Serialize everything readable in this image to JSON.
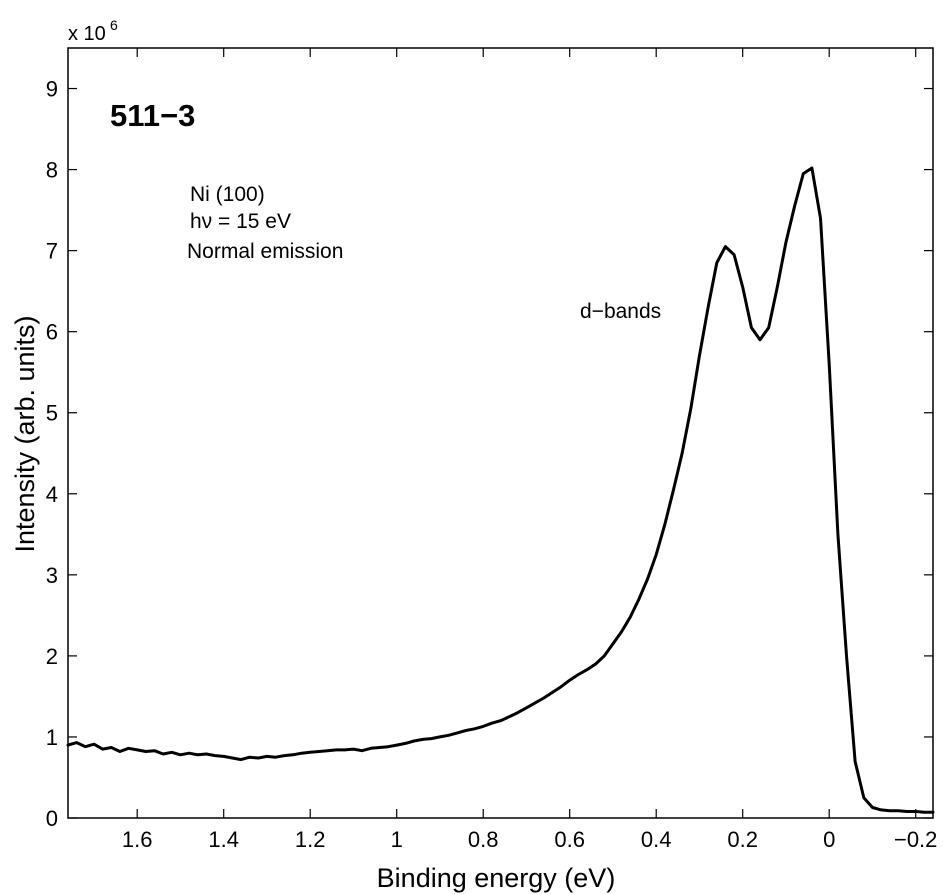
{
  "chart_data": {
    "type": "line",
    "title": "",
    "xlabel": "Binding energy (eV)",
    "ylabel": "Intensity (arb. units)",
    "xlim": [
      1.76,
      -0.24
    ],
    "ylim": [
      0,
      9.5
    ],
    "y_multiplier_label": "x 10",
    "y_multiplier_exponent": "6",
    "x_reversed": true,
    "grid": false,
    "x_ticks": [
      1.6,
      1.4,
      1.2,
      1,
      0.8,
      0.6,
      0.4,
      0.2,
      0,
      -0.2
    ],
    "x_tick_labels": [
      "1.6",
      "1.4",
      "1.2",
      "1",
      "0.8",
      "0.6",
      "0.4",
      "0.2",
      "0",
      "−0.2"
    ],
    "y_ticks": [
      0,
      1,
      2,
      3,
      4,
      5,
      6,
      7,
      8,
      9
    ],
    "y_tick_labels": [
      "0",
      "1",
      "2",
      "3",
      "4",
      "5",
      "6",
      "7",
      "8",
      "9"
    ],
    "series": [
      {
        "color": "#000000",
        "x": [
          1.76,
          1.74,
          1.72,
          1.7,
          1.68,
          1.66,
          1.64,
          1.62,
          1.6,
          1.58,
          1.56,
          1.54,
          1.52,
          1.5,
          1.48,
          1.46,
          1.44,
          1.42,
          1.4,
          1.38,
          1.36,
          1.34,
          1.32,
          1.3,
          1.28,
          1.26,
          1.24,
          1.22,
          1.2,
          1.18,
          1.16,
          1.14,
          1.12,
          1.1,
          1.08,
          1.06,
          1.04,
          1.02,
          1.0,
          0.98,
          0.96,
          0.94,
          0.92,
          0.9,
          0.88,
          0.86,
          0.84,
          0.82,
          0.8,
          0.78,
          0.76,
          0.74,
          0.72,
          0.7,
          0.68,
          0.66,
          0.64,
          0.62,
          0.6,
          0.58,
          0.56,
          0.54,
          0.52,
          0.5,
          0.48,
          0.46,
          0.44,
          0.42,
          0.4,
          0.38,
          0.36,
          0.34,
          0.32,
          0.3,
          0.28,
          0.26,
          0.24,
          0.22,
          0.2,
          0.18,
          0.16,
          0.14,
          0.12,
          0.1,
          0.08,
          0.06,
          0.04,
          0.02,
          0.0,
          -0.02,
          -0.04,
          -0.06,
          -0.08,
          -0.1,
          -0.12,
          -0.14,
          -0.16,
          -0.18,
          -0.2,
          -0.22,
          -0.24
        ],
        "y": [
          0.9,
          0.93,
          0.88,
          0.91,
          0.85,
          0.87,
          0.82,
          0.86,
          0.84,
          0.82,
          0.83,
          0.79,
          0.81,
          0.78,
          0.8,
          0.78,
          0.79,
          0.77,
          0.76,
          0.74,
          0.72,
          0.75,
          0.74,
          0.76,
          0.75,
          0.77,
          0.78,
          0.8,
          0.81,
          0.82,
          0.83,
          0.84,
          0.84,
          0.85,
          0.83,
          0.86,
          0.87,
          0.88,
          0.9,
          0.92,
          0.95,
          0.97,
          0.98,
          1.0,
          1.02,
          1.05,
          1.08,
          1.1,
          1.13,
          1.17,
          1.2,
          1.25,
          1.3,
          1.36,
          1.42,
          1.48,
          1.55,
          1.62,
          1.7,
          1.77,
          1.83,
          1.9,
          2.0,
          2.15,
          2.3,
          2.48,
          2.7,
          2.95,
          3.25,
          3.62,
          4.05,
          4.5,
          5.05,
          5.7,
          6.3,
          6.85,
          7.05,
          6.95,
          6.55,
          6.05,
          5.9,
          6.05,
          6.55,
          7.1,
          7.55,
          7.95,
          8.02,
          7.4,
          5.6,
          3.5,
          2.0,
          0.7,
          0.25,
          0.13,
          0.1,
          0.09,
          0.09,
          0.08,
          0.08,
          0.07,
          0.07
        ]
      }
    ],
    "annotations": {
      "sample_id": "511−3",
      "sample_lines": [
        "Ni (100)",
        "hν = 15 eV",
        "Normal emission"
      ],
      "peak_label": "d−bands"
    }
  }
}
